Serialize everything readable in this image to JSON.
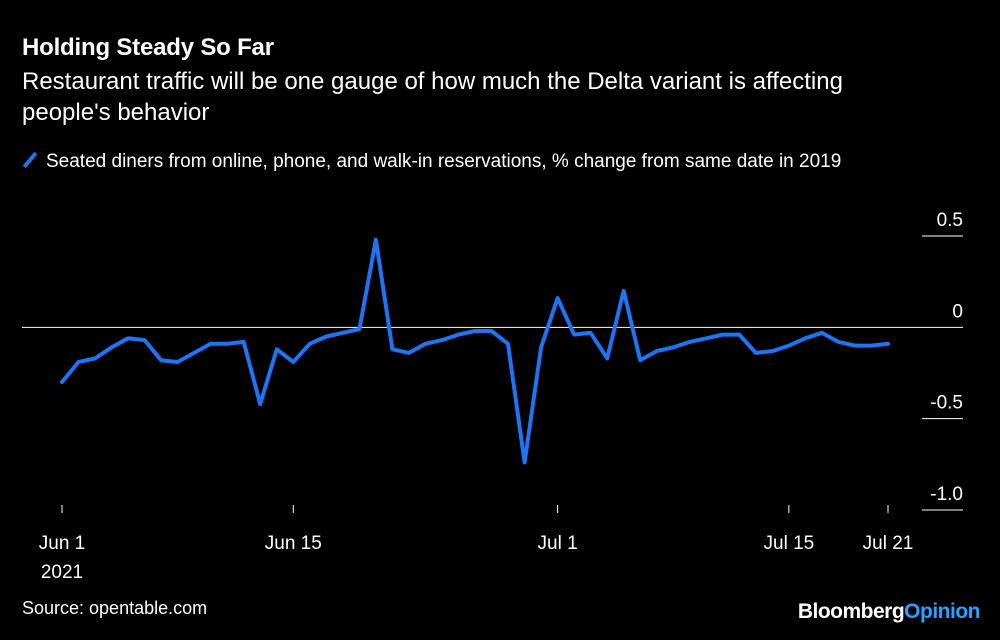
{
  "title": "Holding Steady So Far",
  "subtitle": "Restaurant traffic will be one gauge of how much the Delta variant is affecting people's behavior",
  "legend_label": "Seated diners from online, phone, and walk-in reservations, % change from same date in 2019",
  "source": "Source: opentable.com",
  "brand": {
    "main": "Bloomberg",
    "accent": "Opinion"
  },
  "colors": {
    "series": "#1d74f5",
    "background": "#000000",
    "text": "#ffffff",
    "accent": "#2ba0ff"
  },
  "chart_data": {
    "type": "line",
    "title": "Holding Steady So Far",
    "xlabel": "",
    "ylabel": "",
    "ylim": [
      -1.0,
      0.5
    ],
    "y_ticks": [
      0.5,
      0,
      -0.5,
      -1.0
    ],
    "y_tick_labels": [
      "0.5",
      "0",
      "-0.5",
      "-1.0"
    ],
    "x_ticks": [
      {
        "day": 1,
        "label": "Jun 1",
        "sublabel": "2021"
      },
      {
        "day": 15,
        "label": "Jun 15"
      },
      {
        "day": 31,
        "label": "Jul 1"
      },
      {
        "day": 45,
        "label": "Jul 15"
      },
      {
        "day": 51,
        "label": "Jul 21"
      }
    ],
    "grid": false,
    "series": [
      {
        "name": "Seated diners from online, phone, and walk-in reservations, % change from same date in 2019",
        "x": [
          1,
          2,
          3,
          4,
          5,
          6,
          7,
          8,
          9,
          10,
          11,
          12,
          13,
          14,
          15,
          16,
          17,
          18,
          19,
          20,
          21,
          22,
          23,
          24,
          25,
          26,
          27,
          28,
          29,
          30,
          31,
          32,
          33,
          34,
          35,
          36,
          37,
          38,
          39,
          40,
          41,
          42,
          43,
          44,
          45,
          46,
          47,
          48,
          49,
          50,
          51
        ],
        "values": [
          -0.3,
          -0.19,
          -0.17,
          -0.11,
          -0.06,
          -0.07,
          -0.18,
          -0.19,
          -0.14,
          -0.09,
          -0.09,
          -0.08,
          -0.42,
          -0.12,
          -0.19,
          -0.09,
          -0.05,
          -0.03,
          -0.01,
          0.48,
          -0.12,
          -0.14,
          -0.09,
          -0.07,
          -0.04,
          -0.02,
          -0.02,
          -0.09,
          -0.74,
          -0.11,
          0.16,
          -0.04,
          -0.03,
          -0.17,
          0.2,
          -0.18,
          -0.13,
          -0.11,
          -0.08,
          -0.06,
          -0.04,
          -0.04,
          -0.14,
          -0.13,
          -0.1,
          -0.06,
          -0.03,
          -0.08,
          -0.1,
          -0.1,
          -0.09
        ]
      }
    ]
  }
}
